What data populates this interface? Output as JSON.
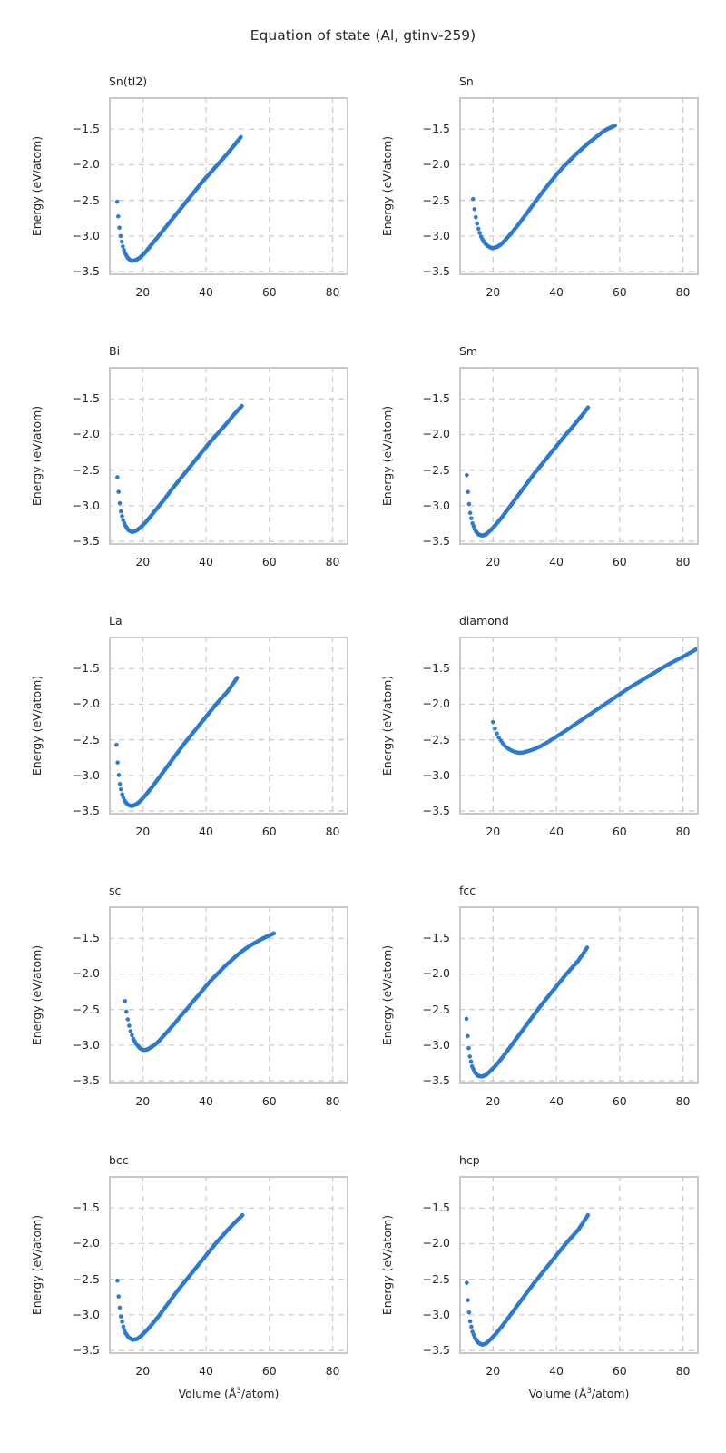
{
  "figure": {
    "title": "Equation of state (Al, gtinv-259)"
  },
  "axes": {
    "ylabel": "Energy (eV/atom)",
    "xlabel": {
      "pre": "Volume (Å",
      "sup": "3",
      "post": "/atom)"
    },
    "xtick_labels": [
      "20",
      "40",
      "60",
      "80"
    ],
    "xtick_values": [
      20,
      40,
      60,
      80
    ],
    "ytick_labels": [
      "−1.5",
      "−2.0",
      "−2.5",
      "−3.0",
      "−3.5"
    ],
    "ytick_values": [
      -1.5,
      -2.0,
      -2.5,
      -3.0,
      -3.5
    ],
    "xlim": [
      9.3,
      85.0
    ],
    "ylim": [
      -3.55,
      -1.05
    ],
    "grid": "dashed",
    "legend": "none"
  },
  "style": {
    "marker_color": "#2e7dd4",
    "marker_edge_color": "#1e6fc4",
    "grid_color": "#cdcdcd",
    "frame_color": "#c8c8c8",
    "text_color": "#262626",
    "background": "#ffffff"
  },
  "chart_data": [
    {
      "type": "scatter",
      "title": "Sn(tI2)",
      "xlabel": "Volume (Å3/atom)",
      "ylabel": "Energy (eV/atom)",
      "points": [
        [
          11.9,
          -2.52
        ],
        [
          12.4,
          -2.8
        ],
        [
          12.9,
          -2.98
        ],
        [
          13.6,
          -3.13
        ],
        [
          14.4,
          -3.24
        ],
        [
          15.3,
          -3.31
        ],
        [
          16.4,
          -3.35
        ],
        [
          17.8,
          -3.34
        ],
        [
          19.2,
          -3.3
        ],
        [
          20.8,
          -3.23
        ],
        [
          22.8,
          -3.12
        ],
        [
          25,
          -3.0
        ],
        [
          27,
          -2.89
        ],
        [
          29,
          -2.78
        ],
        [
          31,
          -2.67
        ],
        [
          33,
          -2.56
        ],
        [
          35,
          -2.45
        ],
        [
          37,
          -2.34
        ],
        [
          39,
          -2.23
        ],
        [
          41,
          -2.13
        ],
        [
          43,
          -2.03
        ],
        [
          45,
          -1.93
        ],
        [
          47,
          -1.83
        ],
        [
          49,
          -1.72
        ],
        [
          51,
          -1.61
        ]
      ]
    },
    {
      "type": "scatter",
      "title": "Sn",
      "xlabel": "Volume (Å3/atom)",
      "ylabel": "Energy (eV/atom)",
      "points": [
        [
          13.7,
          -2.48
        ],
        [
          14.2,
          -2.65
        ],
        [
          14.8,
          -2.8
        ],
        [
          15.5,
          -2.92
        ],
        [
          16.3,
          -3.02
        ],
        [
          17.2,
          -3.09
        ],
        [
          18.3,
          -3.14
        ],
        [
          19.6,
          -3.17
        ],
        [
          21,
          -3.16
        ],
        [
          22.5,
          -3.12
        ],
        [
          24,
          -3.05
        ],
        [
          26,
          -2.95
        ],
        [
          28,
          -2.84
        ],
        [
          30,
          -2.72
        ],
        [
          32,
          -2.6
        ],
        [
          34,
          -2.48
        ],
        [
          36,
          -2.36
        ],
        [
          38,
          -2.25
        ],
        [
          40,
          -2.14
        ],
        [
          42,
          -2.04
        ],
        [
          44,
          -1.95
        ],
        [
          46,
          -1.86
        ],
        [
          48,
          -1.78
        ],
        [
          50,
          -1.7
        ],
        [
          52,
          -1.63
        ],
        [
          54,
          -1.56
        ],
        [
          56,
          -1.5
        ],
        [
          58.5,
          -1.45
        ]
      ]
    },
    {
      "type": "scatter",
      "title": "Bi",
      "xlabel": "Volume (Å3/atom)",
      "ylabel": "Energy (eV/atom)",
      "points": [
        [
          12,
          -2.6
        ],
        [
          12.5,
          -2.88
        ],
        [
          13,
          -3.06
        ],
        [
          13.7,
          -3.19
        ],
        [
          14.5,
          -3.28
        ],
        [
          15.4,
          -3.34
        ],
        [
          16.6,
          -3.37
        ],
        [
          18,
          -3.35
        ],
        [
          19.4,
          -3.3
        ],
        [
          21,
          -3.23
        ],
        [
          23,
          -3.12
        ],
        [
          25,
          -3.01
        ],
        [
          27,
          -2.9
        ],
        [
          29,
          -2.78
        ],
        [
          31,
          -2.67
        ],
        [
          33,
          -2.56
        ],
        [
          35,
          -2.45
        ],
        [
          37,
          -2.34
        ],
        [
          39,
          -2.23
        ],
        [
          41,
          -2.12
        ],
        [
          43,
          -2.02
        ],
        [
          45,
          -1.92
        ],
        [
          47,
          -1.82
        ],
        [
          49,
          -1.71
        ],
        [
          51.3,
          -1.6
        ]
      ]
    },
    {
      "type": "scatter",
      "title": "Sm",
      "xlabel": "Volume (Å3/atom)",
      "ylabel": "Energy (eV/atom)",
      "points": [
        [
          11.7,
          -2.57
        ],
        [
          12.2,
          -2.9
        ],
        [
          12.8,
          -3.11
        ],
        [
          13.5,
          -3.25
        ],
        [
          14.3,
          -3.34
        ],
        [
          15.3,
          -3.4
        ],
        [
          16.5,
          -3.42
        ],
        [
          17.9,
          -3.4
        ],
        [
          19.3,
          -3.34
        ],
        [
          21,
          -3.26
        ],
        [
          23,
          -3.15
        ],
        [
          25,
          -3.03
        ],
        [
          27,
          -2.91
        ],
        [
          29,
          -2.79
        ],
        [
          31,
          -2.67
        ],
        [
          33,
          -2.55
        ],
        [
          35,
          -2.44
        ],
        [
          37,
          -2.33
        ],
        [
          39,
          -2.22
        ],
        [
          41,
          -2.11
        ],
        [
          43,
          -2.0
        ],
        [
          45,
          -1.9
        ],
        [
          47,
          -1.79
        ],
        [
          48.5,
          -1.71
        ],
        [
          50,
          -1.62
        ]
      ]
    },
    {
      "type": "scatter",
      "title": "La",
      "xlabel": "Volume (Å3/atom)",
      "ylabel": "Energy (eV/atom)",
      "points": [
        [
          11.7,
          -2.57
        ],
        [
          12.2,
          -2.92
        ],
        [
          12.8,
          -3.13
        ],
        [
          13.5,
          -3.27
        ],
        [
          14.3,
          -3.36
        ],
        [
          15.3,
          -3.41
        ],
        [
          16.4,
          -3.43
        ],
        [
          17.8,
          -3.41
        ],
        [
          19.2,
          -3.36
        ],
        [
          21,
          -3.27
        ],
        [
          23,
          -3.16
        ],
        [
          25,
          -3.04
        ],
        [
          27,
          -2.92
        ],
        [
          29,
          -2.8
        ],
        [
          31,
          -2.68
        ],
        [
          33,
          -2.56
        ],
        [
          35,
          -2.45
        ],
        [
          37,
          -2.34
        ],
        [
          39,
          -2.23
        ],
        [
          41,
          -2.12
        ],
        [
          43,
          -2.01
        ],
        [
          45,
          -1.91
        ],
        [
          47,
          -1.81
        ],
        [
          48.4,
          -1.72
        ],
        [
          49.8,
          -1.63
        ]
      ]
    },
    {
      "type": "scatter",
      "title": "diamond",
      "xlabel": "Volume (Å3/atom)",
      "ylabel": "Energy (eV/atom)",
      "points": [
        [
          20,
          -2.25
        ],
        [
          20.8,
          -2.37
        ],
        [
          21.7,
          -2.46
        ],
        [
          22.7,
          -2.53
        ],
        [
          23.8,
          -2.59
        ],
        [
          25,
          -2.63
        ],
        [
          26.3,
          -2.66
        ],
        [
          27.7,
          -2.68
        ],
        [
          29.3,
          -2.68
        ],
        [
          31,
          -2.66
        ],
        [
          33,
          -2.63
        ],
        [
          35,
          -2.59
        ],
        [
          37,
          -2.54
        ],
        [
          39.5,
          -2.47
        ],
        [
          42,
          -2.4
        ],
        [
          45,
          -2.31
        ],
        [
          48,
          -2.22
        ],
        [
          51,
          -2.13
        ],
        [
          54,
          -2.04
        ],
        [
          57,
          -1.95
        ],
        [
          60,
          -1.86
        ],
        [
          63,
          -1.77
        ],
        [
          66,
          -1.69
        ],
        [
          69,
          -1.61
        ],
        [
          72,
          -1.53
        ],
        [
          75,
          -1.45
        ],
        [
          78,
          -1.38
        ],
        [
          81,
          -1.31
        ],
        [
          84.5,
          -1.22
        ]
      ]
    },
    {
      "type": "scatter",
      "title": "sc",
      "xlabel": "Volume (Å3/atom)",
      "ylabel": "Energy (eV/atom)",
      "points": [
        [
          14.4,
          -2.38
        ],
        [
          14.9,
          -2.55
        ],
        [
          15.5,
          -2.69
        ],
        [
          16.2,
          -2.81
        ],
        [
          17,
          -2.91
        ],
        [
          17.9,
          -2.98
        ],
        [
          19,
          -3.04
        ],
        [
          20.2,
          -3.07
        ],
        [
          21.5,
          -3.06
        ],
        [
          23,
          -3.02
        ],
        [
          24.5,
          -2.97
        ],
        [
          26,
          -2.9
        ],
        [
          28,
          -2.8
        ],
        [
          30,
          -2.7
        ],
        [
          32,
          -2.59
        ],
        [
          34,
          -2.49
        ],
        [
          36,
          -2.38
        ],
        [
          38,
          -2.28
        ],
        [
          40,
          -2.17
        ],
        [
          42,
          -2.07
        ],
        [
          44,
          -1.98
        ],
        [
          46,
          -1.89
        ],
        [
          48,
          -1.81
        ],
        [
          50,
          -1.73
        ],
        [
          52,
          -1.66
        ],
        [
          54,
          -1.6
        ],
        [
          56,
          -1.55
        ],
        [
          58,
          -1.5
        ],
        [
          60,
          -1.46
        ],
        [
          61.4,
          -1.43
        ]
      ]
    },
    {
      "type": "scatter",
      "title": "fcc",
      "xlabel": "Volume (Å3/atom)",
      "ylabel": "Energy (eV/atom)",
      "points": [
        [
          11.6,
          -2.63
        ],
        [
          12.1,
          -2.97
        ],
        [
          12.7,
          -3.17
        ],
        [
          13.4,
          -3.3
        ],
        [
          14.2,
          -3.38
        ],
        [
          15.2,
          -3.43
        ],
        [
          16.4,
          -3.44
        ],
        [
          17.8,
          -3.42
        ],
        [
          19.2,
          -3.36
        ],
        [
          21,
          -3.28
        ],
        [
          23,
          -3.17
        ],
        [
          25,
          -3.05
        ],
        [
          27,
          -2.93
        ],
        [
          29,
          -2.81
        ],
        [
          31,
          -2.69
        ],
        [
          33,
          -2.57
        ],
        [
          35,
          -2.45
        ],
        [
          37,
          -2.34
        ],
        [
          39,
          -2.23
        ],
        [
          41,
          -2.12
        ],
        [
          43,
          -2.01
        ],
        [
          45,
          -1.91
        ],
        [
          47,
          -1.81
        ],
        [
          48.4,
          -1.72
        ],
        [
          49.7,
          -1.63
        ]
      ]
    },
    {
      "type": "scatter",
      "title": "bcc",
      "xlabel": "Volume (Å3/atom)",
      "ylabel": "Energy (eV/atom)",
      "points": [
        [
          12,
          -2.52
        ],
        [
          12.5,
          -2.82
        ],
        [
          13.1,
          -3.02
        ],
        [
          13.8,
          -3.16
        ],
        [
          14.6,
          -3.26
        ],
        [
          15.6,
          -3.32
        ],
        [
          16.8,
          -3.35
        ],
        [
          18.2,
          -3.34
        ],
        [
          19.6,
          -3.29
        ],
        [
          21.2,
          -3.22
        ],
        [
          23,
          -3.13
        ],
        [
          25,
          -3.02
        ],
        [
          27,
          -2.9
        ],
        [
          29,
          -2.78
        ],
        [
          31,
          -2.66
        ],
        [
          33,
          -2.55
        ],
        [
          35,
          -2.44
        ],
        [
          37,
          -2.33
        ],
        [
          39,
          -2.22
        ],
        [
          41,
          -2.11
        ],
        [
          43,
          -2.0
        ],
        [
          45,
          -1.9
        ],
        [
          47,
          -1.8
        ],
        [
          49.2,
          -1.7
        ],
        [
          51.5,
          -1.6
        ]
      ]
    },
    {
      "type": "scatter",
      "title": "hcp",
      "xlabel": "Volume (Å3/atom)",
      "ylabel": "Energy (eV/atom)",
      "points": [
        [
          11.7,
          -2.55
        ],
        [
          12.2,
          -2.89
        ],
        [
          12.8,
          -3.1
        ],
        [
          13.5,
          -3.24
        ],
        [
          14.3,
          -3.33
        ],
        [
          15.3,
          -3.39
        ],
        [
          16.5,
          -3.42
        ],
        [
          17.9,
          -3.4
        ],
        [
          19.3,
          -3.34
        ],
        [
          21,
          -3.26
        ],
        [
          23,
          -3.15
        ],
        [
          25,
          -3.03
        ],
        [
          27,
          -2.91
        ],
        [
          29,
          -2.79
        ],
        [
          31,
          -2.67
        ],
        [
          33,
          -2.55
        ],
        [
          35,
          -2.44
        ],
        [
          37,
          -2.33
        ],
        [
          39,
          -2.22
        ],
        [
          41,
          -2.11
        ],
        [
          43,
          -2.0
        ],
        [
          45,
          -1.9
        ],
        [
          47,
          -1.8
        ],
        [
          48.5,
          -1.7
        ],
        [
          50,
          -1.6
        ]
      ]
    }
  ]
}
